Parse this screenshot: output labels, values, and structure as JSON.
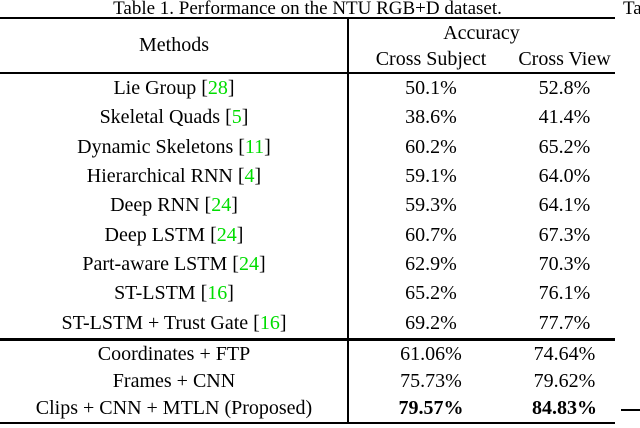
{
  "caption": "Table 1. Performance on the NTU RGB+D dataset.",
  "adjacent_caption_fragment": "Ta",
  "colors": {
    "citation_green": "#00dd00",
    "text": "#000000",
    "rule": "#000000"
  },
  "table": {
    "methods_header": "Methods",
    "accuracy_header": "Accuracy",
    "col1_header": "Cross Subject",
    "col2_header": "Cross View",
    "rows": [
      {
        "method": "Lie Group",
        "cite": "28",
        "cross_subject": "50.1%",
        "cross_view": "52.8%",
        "bold": false
      },
      {
        "method": "Skeletal Quads",
        "cite": "5",
        "cross_subject": "38.6%",
        "cross_view": "41.4%",
        "bold": false
      },
      {
        "method": "Dynamic Skeletons",
        "cite": "11",
        "cross_subject": "60.2%",
        "cross_view": "65.2%",
        "bold": false
      },
      {
        "method": "Hierarchical RNN",
        "cite": "4",
        "cross_subject": "59.1%",
        "cross_view": "64.0%",
        "bold": false
      },
      {
        "method": "Deep RNN",
        "cite": "24",
        "cross_subject": "59.3%",
        "cross_view": "64.1%",
        "bold": false
      },
      {
        "method": "Deep LSTM",
        "cite": "24",
        "cross_subject": "60.7%",
        "cross_view": "67.3%",
        "bold": false
      },
      {
        "method": "Part-aware LSTM",
        "cite": "24",
        "cross_subject": "62.9%",
        "cross_view": "70.3%",
        "bold": false
      },
      {
        "method": "ST-LSTM",
        "cite": "16",
        "cross_subject": "65.2%",
        "cross_view": "76.1%",
        "bold": false
      },
      {
        "method": "ST-LSTM + Trust Gate",
        "cite": "16",
        "cross_subject": "69.2%",
        "cross_view": "77.7%",
        "bold": false
      }
    ],
    "proposed_rows": [
      {
        "method": "Coordinates + FTP",
        "cite": null,
        "cross_subject": "61.06%",
        "cross_view": "74.64%",
        "bold": false
      },
      {
        "method": "Frames + CNN",
        "cite": null,
        "cross_subject": "75.73%",
        "cross_view": "79.62%",
        "bold": false
      },
      {
        "method": "Clips + CNN + MTLN (Proposed)",
        "cite": null,
        "cross_subject": "79.57%",
        "cross_view": "84.83%",
        "bold": true
      }
    ],
    "bracket_open": "[",
    "bracket_close": "]"
  }
}
